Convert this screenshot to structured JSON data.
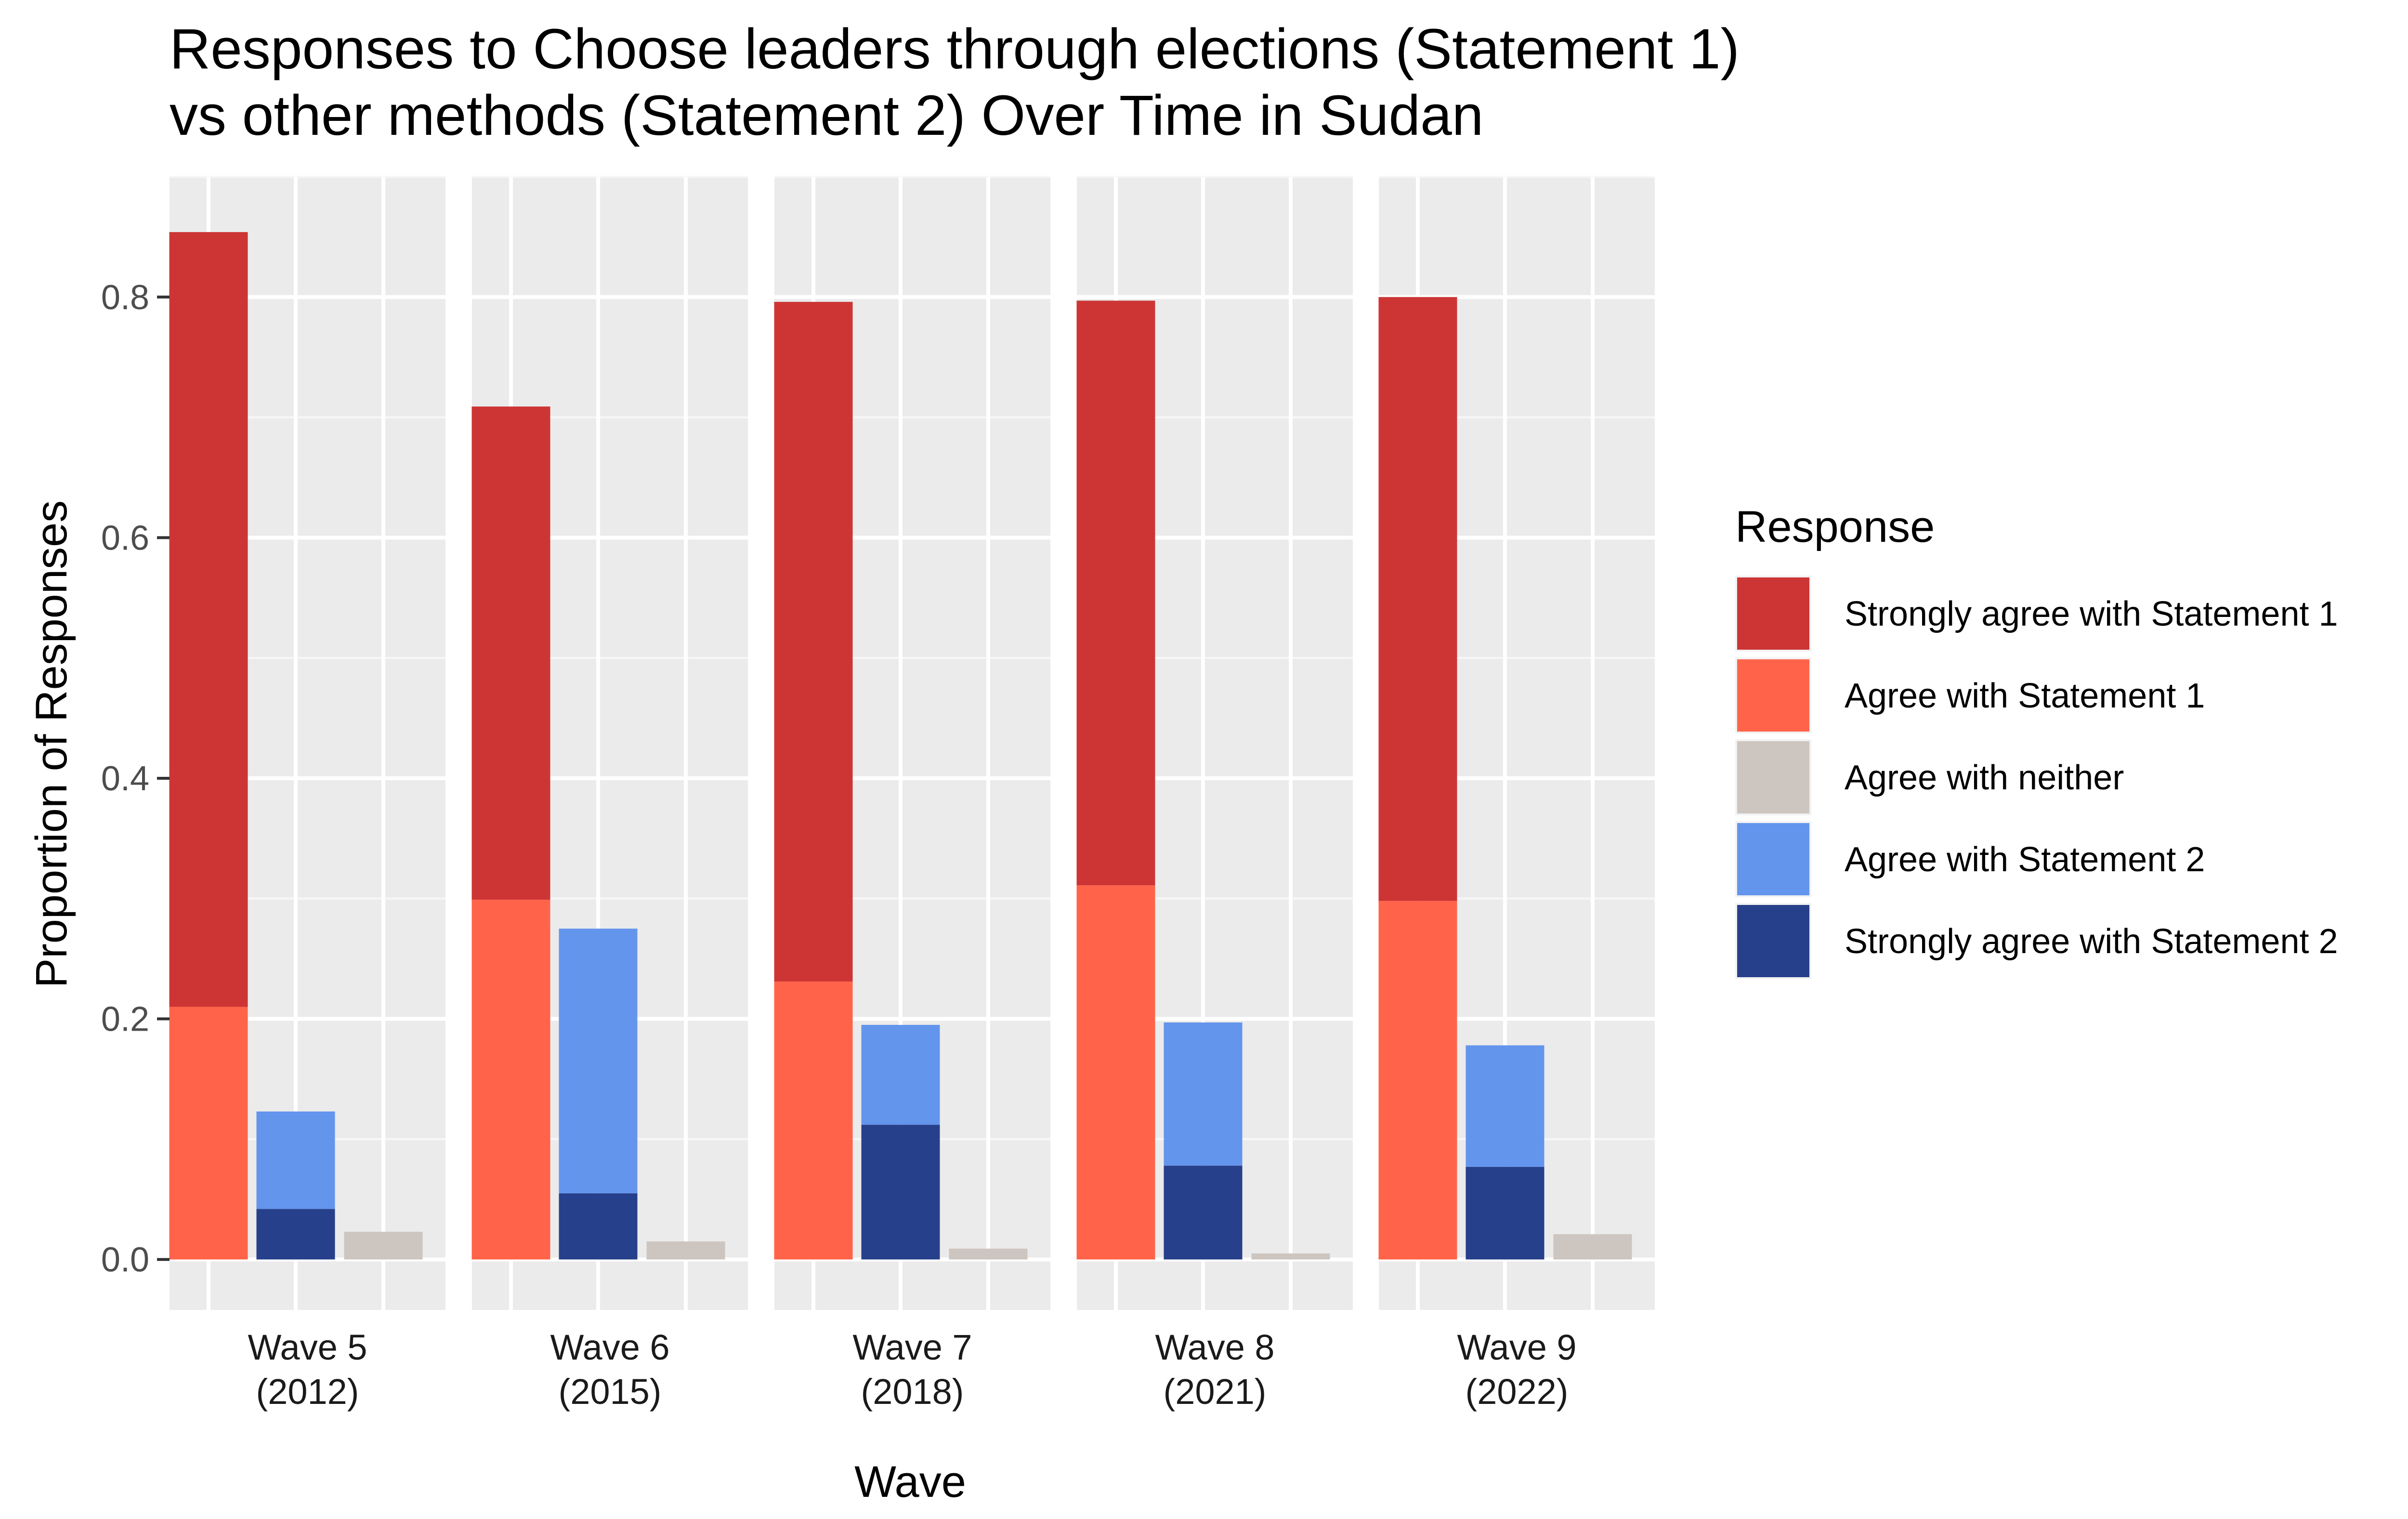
{
  "chart_data": {
    "type": "bar",
    "title_lines": [
      "Responses to Choose leaders through elections (Statement 1)",
      "vs other methods (Statement 2) Over Time in Sudan"
    ],
    "xlabel": "Wave",
    "ylabel": "Proportion of Responses",
    "ylim": [
      -0.042,
      0.9
    ],
    "y_ticks": [
      0.0,
      0.2,
      0.4,
      0.6,
      0.8
    ],
    "y_tick_labels": [
      "0.0",
      "0.2",
      "0.4",
      "0.6",
      "0.8"
    ],
    "grid": true,
    "legend": {
      "title": "Response",
      "placement": "right",
      "items": [
        {
          "label": "Strongly agree with Statement 1",
          "color": "#CD3535"
        },
        {
          "label": "Agree with Statement 1",
          "color": "#FF644A"
        },
        {
          "label": "Agree with neither",
          "color": "#CDC5BF"
        },
        {
          "label": "Agree with Statement 2",
          "color": "#6495ED"
        },
        {
          "label": "Strongly agree with Statement 2",
          "color": "#27408B"
        }
      ]
    },
    "bar_groups": [
      "Statement 1",
      "Statement 2",
      "Neither"
    ],
    "panels": [
      {
        "label_line1": "Wave 5",
        "label_line2": "(2012)",
        "bars": [
          {
            "group": "Statement 1",
            "segments": [
              {
                "response": "Agree with Statement 1",
                "value": 0.21
              },
              {
                "response": "Strongly agree with Statement 1",
                "value": 0.644
              }
            ]
          },
          {
            "group": "Statement 2",
            "segments": [
              {
                "response": "Strongly agree with Statement 2",
                "value": 0.042
              },
              {
                "response": "Agree with Statement 2",
                "value": 0.081
              }
            ]
          },
          {
            "group": "Neither",
            "segments": [
              {
                "response": "Agree with neither",
                "value": 0.023
              }
            ]
          }
        ]
      },
      {
        "label_line1": "Wave 6",
        "label_line2": "(2015)",
        "bars": [
          {
            "group": "Statement 1",
            "segments": [
              {
                "response": "Agree with Statement 1",
                "value": 0.299
              },
              {
                "response": "Strongly agree with Statement 1",
                "value": 0.41
              }
            ]
          },
          {
            "group": "Statement 2",
            "segments": [
              {
                "response": "Strongly agree with Statement 2",
                "value": 0.055
              },
              {
                "response": "Agree with Statement 2",
                "value": 0.22
              }
            ]
          },
          {
            "group": "Neither",
            "segments": [
              {
                "response": "Agree with neither",
                "value": 0.015
              }
            ]
          }
        ]
      },
      {
        "label_line1": "Wave 7",
        "label_line2": "(2018)",
        "bars": [
          {
            "group": "Statement 1",
            "segments": [
              {
                "response": "Agree with Statement 1",
                "value": 0.231
              },
              {
                "response": "Strongly agree with Statement 1",
                "value": 0.565
              }
            ]
          },
          {
            "group": "Statement 2",
            "segments": [
              {
                "response": "Strongly agree with Statement 2",
                "value": 0.112
              },
              {
                "response": "Agree with Statement 2",
                "value": 0.083
              }
            ]
          },
          {
            "group": "Neither",
            "segments": [
              {
                "response": "Agree with neither",
                "value": 0.009
              }
            ]
          }
        ]
      },
      {
        "label_line1": "Wave 8",
        "label_line2": "(2021)",
        "bars": [
          {
            "group": "Statement 1",
            "segments": [
              {
                "response": "Agree with Statement 1",
                "value": 0.311
              },
              {
                "response": "Strongly agree with Statement 1",
                "value": 0.486
              }
            ]
          },
          {
            "group": "Statement 2",
            "segments": [
              {
                "response": "Strongly agree with Statement 2",
                "value": 0.078
              },
              {
                "response": "Agree with Statement 2",
                "value": 0.119
              }
            ]
          },
          {
            "group": "Neither",
            "segments": [
              {
                "response": "Agree with neither",
                "value": 0.005
              }
            ]
          }
        ]
      },
      {
        "label_line1": "Wave 9",
        "label_line2": "(2022)",
        "bars": [
          {
            "group": "Statement 1",
            "segments": [
              {
                "response": "Agree with Statement 1",
                "value": 0.298
              },
              {
                "response": "Strongly agree with Statement 1",
                "value": 0.502
              }
            ]
          },
          {
            "group": "Statement 2",
            "segments": [
              {
                "response": "Strongly agree with Statement 2",
                "value": 0.077
              },
              {
                "response": "Agree with Statement 2",
                "value": 0.101
              }
            ]
          },
          {
            "group": "Neither",
            "segments": [
              {
                "response": "Agree with neither",
                "value": 0.021
              }
            ]
          }
        ]
      }
    ]
  }
}
